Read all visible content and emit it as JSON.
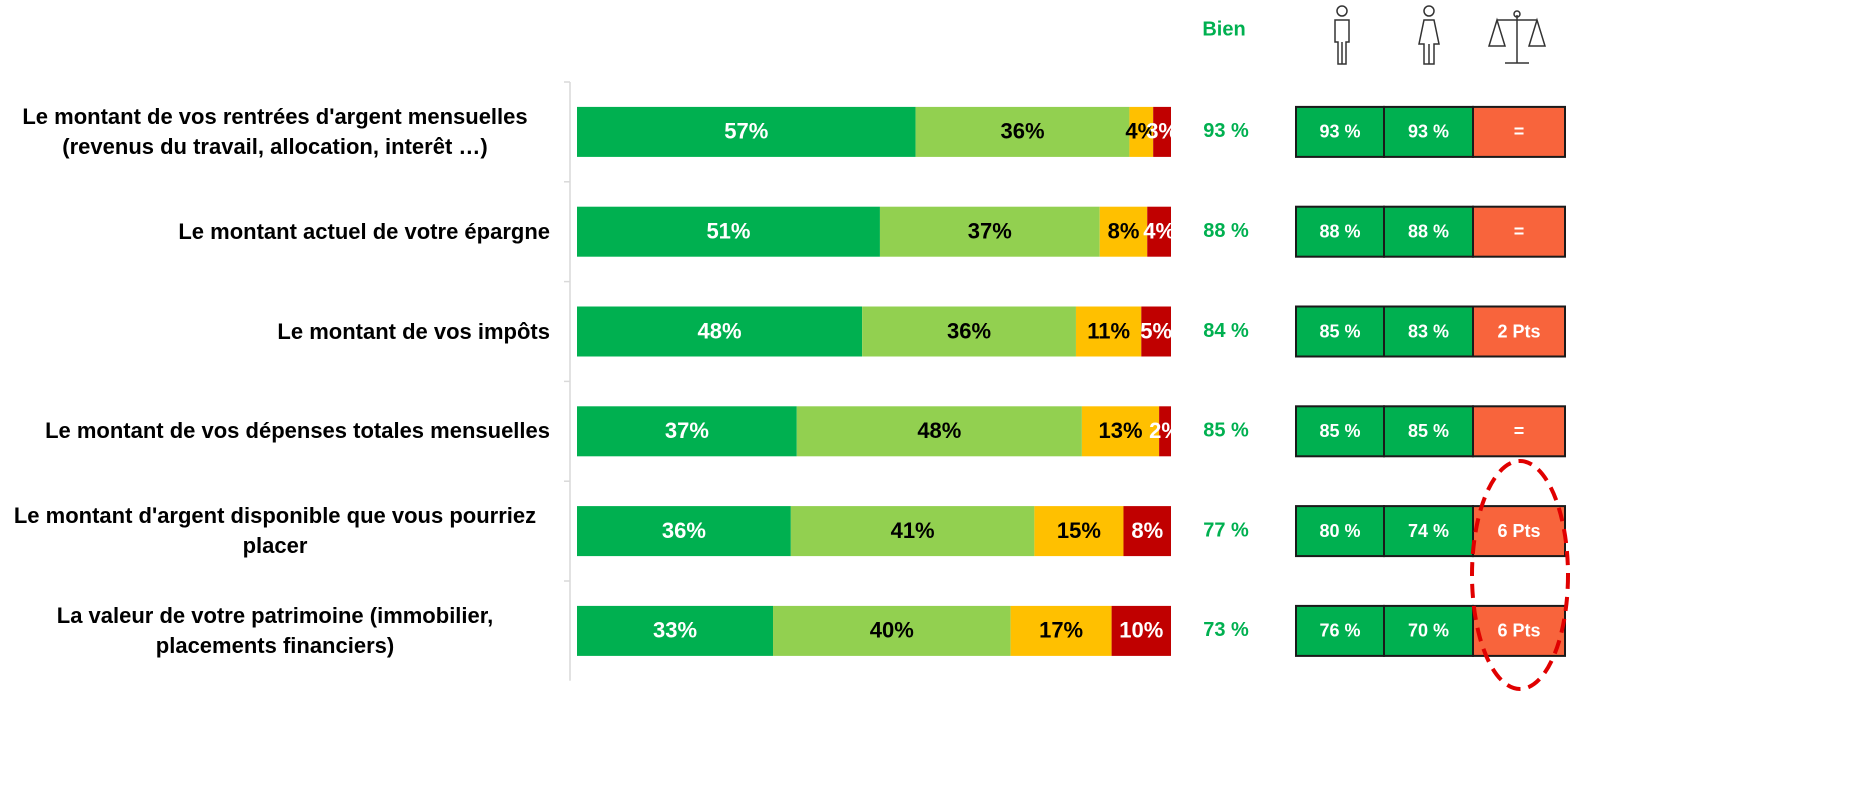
{
  "chart_data": {
    "type": "stacked-bar",
    "categories": [
      "Le montant de vos rentrées d'argent mensuelles (revenus du travail, allocation, interêt …)",
      "Le montant actuel de votre épargne",
      "Le montant de vos impôts",
      "Le montant de vos dépenses totales mensuelles",
      "Le montant d'argent disponible que vous pourriez placer",
      "La valeur de votre patrimoine (immobilier, placements financiers)"
    ],
    "series": [
      {
        "color": "#00b050",
        "values": [
          57,
          51,
          48,
          37,
          36,
          33
        ],
        "value_labels": [
          "57%",
          "51%",
          "48%",
          "37%",
          "36%",
          "33%"
        ]
      },
      {
        "color": "#92d050",
        "values": [
          36,
          37,
          36,
          48,
          41,
          40
        ],
        "value_labels": [
          "36%",
          "37%",
          "36%",
          "48%",
          "41%",
          "40%"
        ]
      },
      {
        "color": "#ffc000",
        "values": [
          4,
          8,
          11,
          13,
          15,
          17
        ],
        "value_labels": [
          "4%",
          "8%",
          "11%",
          "13%",
          "15%",
          "17%"
        ]
      },
      {
        "color": "#c00000",
        "values": [
          3,
          4,
          5,
          2,
          8,
          10
        ],
        "value_labels": [
          "3%",
          "4%",
          "5%",
          "2%",
          "8%",
          "10%"
        ]
      }
    ],
    "xlim": [
      0,
      100
    ]
  },
  "table": {
    "header": "Bien",
    "bien": [
      "93 %",
      "88 %",
      "84 %",
      "85 %",
      "77 %",
      "73 %"
    ],
    "rows": [
      [
        "93 %",
        "93 %",
        "="
      ],
      [
        "88 %",
        "88 %",
        "="
      ],
      [
        "85 %",
        "83 %",
        "2 Pts"
      ],
      [
        "85 %",
        "85 %",
        "="
      ],
      [
        "80 %",
        "74 %",
        "6 Pts"
      ],
      [
        "76 %",
        "70 %",
        "6 Pts"
      ]
    ]
  }
}
